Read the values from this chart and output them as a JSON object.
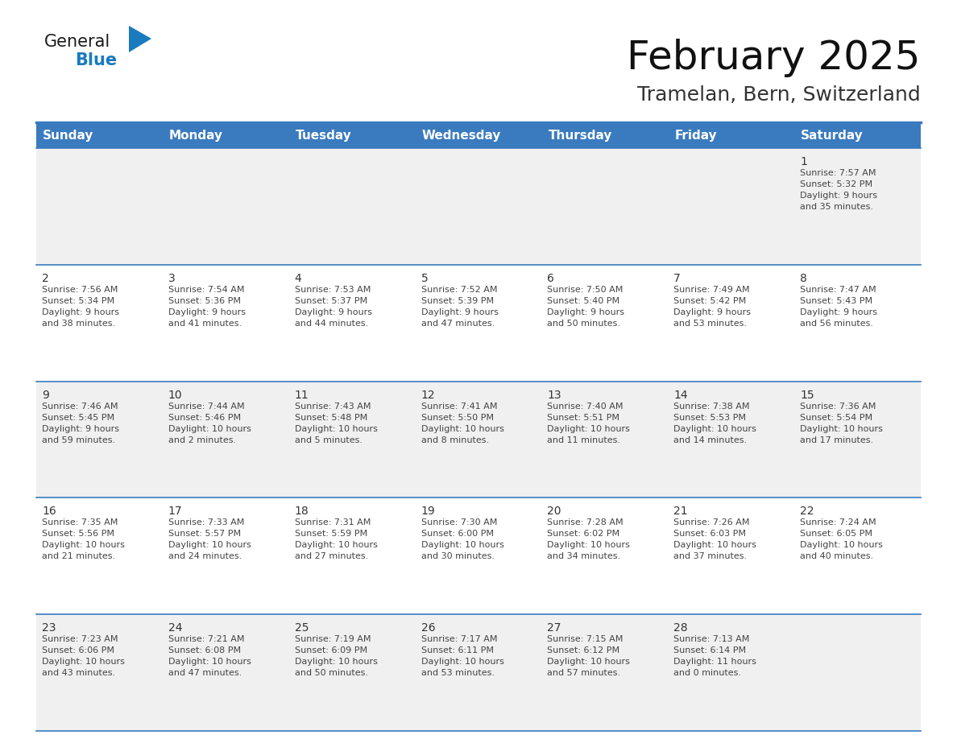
{
  "title": "February 2025",
  "subtitle": "Tramelan, Bern, Switzerland",
  "days_of_week": [
    "Sunday",
    "Monday",
    "Tuesday",
    "Wednesday",
    "Thursday",
    "Friday",
    "Saturday"
  ],
  "header_bg": "#3a7bbf",
  "header_text": "#ffffff",
  "row_bg_odd": "#f0f0f0",
  "row_bg_even": "#ffffff",
  "border_color": "#3a7bbf",
  "text_color": "#444444",
  "day_num_color": "#333333",
  "calendar": [
    [
      null,
      null,
      null,
      null,
      null,
      null,
      {
        "day": 1,
        "sunrise": "7:57 AM",
        "sunset": "5:32 PM",
        "daylight": "9 hours\nand 35 minutes."
      }
    ],
    [
      {
        "day": 2,
        "sunrise": "7:56 AM",
        "sunset": "5:34 PM",
        "daylight": "9 hours\nand 38 minutes."
      },
      {
        "day": 3,
        "sunrise": "7:54 AM",
        "sunset": "5:36 PM",
        "daylight": "9 hours\nand 41 minutes."
      },
      {
        "day": 4,
        "sunrise": "7:53 AM",
        "sunset": "5:37 PM",
        "daylight": "9 hours\nand 44 minutes."
      },
      {
        "day": 5,
        "sunrise": "7:52 AM",
        "sunset": "5:39 PM",
        "daylight": "9 hours\nand 47 minutes."
      },
      {
        "day": 6,
        "sunrise": "7:50 AM",
        "sunset": "5:40 PM",
        "daylight": "9 hours\nand 50 minutes."
      },
      {
        "day": 7,
        "sunrise": "7:49 AM",
        "sunset": "5:42 PM",
        "daylight": "9 hours\nand 53 minutes."
      },
      {
        "day": 8,
        "sunrise": "7:47 AM",
        "sunset": "5:43 PM",
        "daylight": "9 hours\nand 56 minutes."
      }
    ],
    [
      {
        "day": 9,
        "sunrise": "7:46 AM",
        "sunset": "5:45 PM",
        "daylight": "9 hours\nand 59 minutes."
      },
      {
        "day": 10,
        "sunrise": "7:44 AM",
        "sunset": "5:46 PM",
        "daylight": "10 hours\nand 2 minutes."
      },
      {
        "day": 11,
        "sunrise": "7:43 AM",
        "sunset": "5:48 PM",
        "daylight": "10 hours\nand 5 minutes."
      },
      {
        "day": 12,
        "sunrise": "7:41 AM",
        "sunset": "5:50 PM",
        "daylight": "10 hours\nand 8 minutes."
      },
      {
        "day": 13,
        "sunrise": "7:40 AM",
        "sunset": "5:51 PM",
        "daylight": "10 hours\nand 11 minutes."
      },
      {
        "day": 14,
        "sunrise": "7:38 AM",
        "sunset": "5:53 PM",
        "daylight": "10 hours\nand 14 minutes."
      },
      {
        "day": 15,
        "sunrise": "7:36 AM",
        "sunset": "5:54 PM",
        "daylight": "10 hours\nand 17 minutes."
      }
    ],
    [
      {
        "day": 16,
        "sunrise": "7:35 AM",
        "sunset": "5:56 PM",
        "daylight": "10 hours\nand 21 minutes."
      },
      {
        "day": 17,
        "sunrise": "7:33 AM",
        "sunset": "5:57 PM",
        "daylight": "10 hours\nand 24 minutes."
      },
      {
        "day": 18,
        "sunrise": "7:31 AM",
        "sunset": "5:59 PM",
        "daylight": "10 hours\nand 27 minutes."
      },
      {
        "day": 19,
        "sunrise": "7:30 AM",
        "sunset": "6:00 PM",
        "daylight": "10 hours\nand 30 minutes."
      },
      {
        "day": 20,
        "sunrise": "7:28 AM",
        "sunset": "6:02 PM",
        "daylight": "10 hours\nand 34 minutes."
      },
      {
        "day": 21,
        "sunrise": "7:26 AM",
        "sunset": "6:03 PM",
        "daylight": "10 hours\nand 37 minutes."
      },
      {
        "day": 22,
        "sunrise": "7:24 AM",
        "sunset": "6:05 PM",
        "daylight": "10 hours\nand 40 minutes."
      }
    ],
    [
      {
        "day": 23,
        "sunrise": "7:23 AM",
        "sunset": "6:06 PM",
        "daylight": "10 hours\nand 43 minutes."
      },
      {
        "day": 24,
        "sunrise": "7:21 AM",
        "sunset": "6:08 PM",
        "daylight": "10 hours\nand 47 minutes."
      },
      {
        "day": 25,
        "sunrise": "7:19 AM",
        "sunset": "6:09 PM",
        "daylight": "10 hours\nand 50 minutes."
      },
      {
        "day": 26,
        "sunrise": "7:17 AM",
        "sunset": "6:11 PM",
        "daylight": "10 hours\nand 53 minutes."
      },
      {
        "day": 27,
        "sunrise": "7:15 AM",
        "sunset": "6:12 PM",
        "daylight": "10 hours\nand 57 minutes."
      },
      {
        "day": 28,
        "sunrise": "7:13 AM",
        "sunset": "6:14 PM",
        "daylight": "11 hours\nand 0 minutes."
      },
      null
    ]
  ],
  "logo_general_color": "#1a1a1a",
  "logo_blue_color": "#1a7bbf",
  "logo_triangle_color": "#1a7bbf",
  "title_fontsize": 36,
  "subtitle_fontsize": 18,
  "header_fontsize": 11,
  "day_num_fontsize": 10,
  "cell_text_fontsize": 8
}
